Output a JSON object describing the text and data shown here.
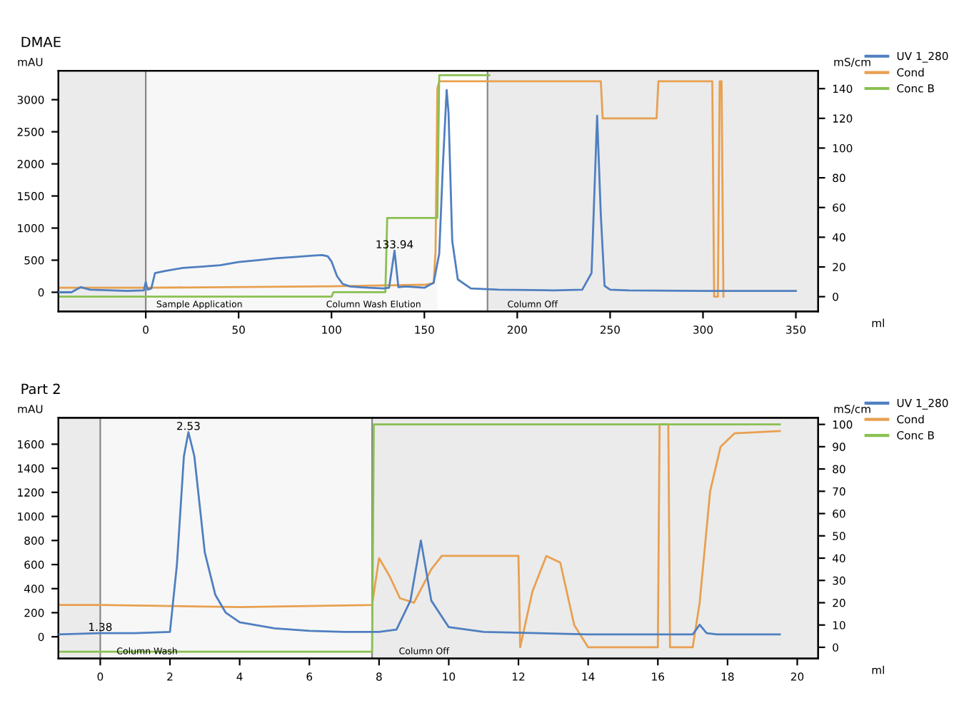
{
  "chart_data": [
    {
      "type": "line",
      "title": "DMAE",
      "xlabel": "ml",
      "ylabel": "mAU",
      "y2label": "mS/cm",
      "xlim": [
        -47,
        362
      ],
      "xticks": [
        0,
        50,
        100,
        150,
        200,
        250,
        300,
        350
      ],
      "ylim": [
        -300,
        3450
      ],
      "yticks": [
        0,
        500,
        1000,
        1500,
        2000,
        2500,
        3000
      ],
      "y2lim": [
        -10,
        152
      ],
      "y2ticks": [
        0,
        20,
        40,
        60,
        80,
        100,
        120,
        140
      ],
      "legend": "right",
      "grid": false,
      "marker": "none",
      "line_style": "solid",
      "bands": [
        {
          "axis": "x",
          "from": -47,
          "to": 0,
          "color": "#ebebeb"
        },
        {
          "axis": "x",
          "from": 0,
          "to": 95,
          "label": "Sample Application",
          "color": "#f7f7f7"
        },
        {
          "axis": "x",
          "from": 95,
          "to": 130,
          "label": "Column Wash",
          "color": "#f7f7f7"
        },
        {
          "axis": "x",
          "from": 130,
          "to": 157,
          "label": "Elution",
          "color": "#f7f7f7"
        },
        {
          "axis": "x",
          "from": 184,
          "to": 362,
          "color": "#ebebeb",
          "label": "Column Off"
        }
      ],
      "ref_lines": [
        {
          "axis": "x",
          "value": 0,
          "color": "#888888"
        },
        {
          "axis": "x",
          "value": 184,
          "color": "#888888"
        }
      ],
      "annotations": [
        {
          "text": "133.94",
          "x": 133.94,
          "y": 650
        }
      ],
      "series": [
        {
          "name": "UV 1_280",
          "color": "#4f7fc0",
          "axis": "y",
          "x": [
            -47,
            -40,
            -35,
            -30,
            -10,
            -1,
            0,
            1,
            3,
            5,
            10,
            20,
            30,
            40,
            50,
            60,
            70,
            80,
            90,
            95,
            98,
            100,
            103,
            106,
            110,
            120,
            128,
            131,
            133.94,
            136,
            140,
            150,
            155,
            158,
            160,
            162,
            163,
            165,
            168,
            175,
            190,
            220,
            235,
            240,
            243,
            245,
            247,
            250,
            260,
            300,
            340,
            350
          ],
          "values": [
            0,
            0,
            80,
            40,
            20,
            30,
            160,
            40,
            60,
            300,
            330,
            380,
            400,
            420,
            470,
            500,
            530,
            550,
            570,
            580,
            560,
            480,
            250,
            130,
            90,
            70,
            60,
            70,
            650,
            80,
            90,
            70,
            150,
            600,
            2000,
            3150,
            2800,
            800,
            200,
            60,
            40,
            30,
            40,
            300,
            2750,
            1200,
            100,
            40,
            30,
            20,
            20,
            20
          ]
        },
        {
          "name": "Cond",
          "color": "#e8a050",
          "axis": "y2",
          "x": [
            -47,
            0,
            100,
            150,
            155,
            156,
            157,
            158,
            245,
            246,
            275,
            276,
            305,
            306,
            308,
            309,
            310,
            311
          ],
          "values": [
            6,
            6,
            7,
            8,
            9,
            30,
            140,
            145,
            145,
            120,
            120,
            145,
            145,
            0,
            0,
            145,
            145,
            0
          ]
        },
        {
          "name": "Conc B",
          "color": "#8ac050",
          "axis": "y2",
          "x": [
            -47,
            0,
            100,
            101,
            129,
            130,
            157,
            158,
            185
          ],
          "values": [
            0,
            0,
            0,
            3,
            3,
            53,
            53,
            149,
            149
          ]
        }
      ]
    },
    {
      "type": "line",
      "title": "Part 2",
      "xlabel": "ml",
      "ylabel": "mAU",
      "y2label": "mS/cm",
      "xlim": [
        -1.2,
        20.6
      ],
      "xticks": [
        0,
        2,
        4,
        6,
        8,
        10,
        12,
        14,
        16,
        18,
        20
      ],
      "ylim": [
        -180,
        1820
      ],
      "yticks": [
        0,
        200,
        400,
        600,
        800,
        1000,
        1200,
        1400,
        1600
      ],
      "y2lim": [
        -5,
        103
      ],
      "y2ticks": [
        0,
        10,
        20,
        30,
        40,
        50,
        60,
        70,
        80,
        90,
        100
      ],
      "legend": "right",
      "grid": false,
      "marker": "none",
      "line_style": "solid",
      "bands": [
        {
          "axis": "x",
          "from": -1.2,
          "to": 0,
          "color": "#ebebeb"
        },
        {
          "axis": "x",
          "from": 0,
          "to": 7.8,
          "label": "Column Wash",
          "color": "#f7f7f7"
        },
        {
          "axis": "x",
          "from": 7.8,
          "to": 20.6,
          "color": "#ebebeb",
          "label": "Column Off"
        }
      ],
      "ref_lines": [
        {
          "axis": "x",
          "value": 0,
          "color": "#888888"
        },
        {
          "axis": "x",
          "value": 7.8,
          "color": "#888888"
        }
      ],
      "annotations": [
        {
          "text": "2.53",
          "x": 2.53,
          "y": 1700
        },
        {
          "text": "1.38",
          "x": 0,
          "y": 30
        }
      ],
      "series": [
        {
          "name": "UV 1_280",
          "color": "#4f7fc0",
          "axis": "y",
          "x": [
            -1.2,
            0,
            1,
            2,
            2.2,
            2.4,
            2.53,
            2.7,
            3,
            3.3,
            3.6,
            4,
            5,
            6,
            7,
            8,
            8.5,
            8.9,
            9.2,
            9.5,
            10,
            11,
            14,
            17,
            17.2,
            17.4,
            17.7,
            19.5
          ],
          "values": [
            20,
            30,
            30,
            40,
            600,
            1500,
            1700,
            1500,
            700,
            350,
            200,
            120,
            70,
            50,
            40,
            40,
            60,
            300,
            800,
            300,
            80,
            40,
            20,
            20,
            100,
            30,
            20,
            20
          ]
        },
        {
          "name": "Cond",
          "color": "#e8a050",
          "axis": "y2",
          "x": [
            -1.2,
            0,
            4,
            7.8,
            8,
            8.3,
            8.6,
            9,
            9.5,
            9.8,
            12,
            12.05,
            12.4,
            12.8,
            13.2,
            13.6,
            14,
            16,
            16.05,
            16.3,
            16.35,
            17,
            17.2,
            17.5,
            17.8,
            18.2,
            19.5
          ],
          "values": [
            19,
            19,
            18,
            19,
            40,
            32,
            22,
            20,
            35,
            41,
            41,
            0,
            25,
            41,
            38,
            10,
            0,
            0,
            100,
            100,
            0,
            0,
            20,
            70,
            90,
            96,
            97
          ]
        },
        {
          "name": "Conc B",
          "color": "#8ac050",
          "axis": "y2",
          "x": [
            -1.2,
            0,
            7.8,
            7.85,
            19.5
          ],
          "values": [
            -2,
            -2,
            -2,
            100,
            100
          ]
        }
      ]
    }
  ]
}
